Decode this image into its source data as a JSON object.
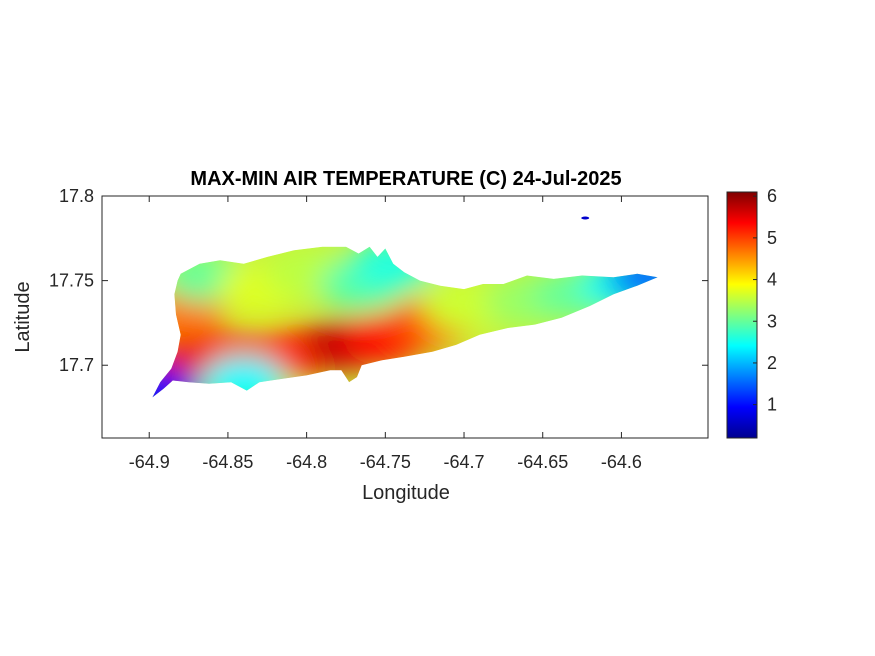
{
  "chart_data": {
    "type": "heatmap",
    "title": "MAX-MIN AIR TEMPERATURE (C) 24-Jul-2025",
    "xlabel": "Longitude",
    "ylabel": "Latitude",
    "xlim": [
      -64.93,
      -64.545
    ],
    "ylim": [
      17.657,
      17.8
    ],
    "x_ticks": [
      -64.9,
      -64.85,
      -64.8,
      -64.75,
      -64.7,
      -64.65,
      -64.6
    ],
    "x_tick_labels": [
      "-64.9",
      "-64.85",
      "-64.8",
      "-64.75",
      "-64.7",
      "-64.65",
      "-64.6"
    ],
    "y_ticks": [
      17.7,
      17.75,
      17.8
    ],
    "y_tick_labels": [
      "17.7",
      "17.75",
      "17.8"
    ],
    "colorbar": {
      "colormap": "jet",
      "range": [
        0.2,
        6.1
      ],
      "ticks": [
        1,
        2,
        3,
        4,
        5,
        6
      ],
      "tick_labels": [
        "1",
        "2",
        "3",
        "4",
        "5",
        "6"
      ]
    },
    "island_outline": [
      [
        -64.88,
        17.754
      ],
      [
        -64.868,
        17.76
      ],
      [
        -64.855,
        17.762
      ],
      [
        -64.84,
        17.76
      ],
      [
        -64.825,
        17.764
      ],
      [
        -64.808,
        17.768
      ],
      [
        -64.79,
        17.77
      ],
      [
        -64.775,
        17.77
      ],
      [
        -64.767,
        17.766
      ],
      [
        -64.76,
        17.77
      ],
      [
        -64.755,
        17.764
      ],
      [
        -64.75,
        17.769
      ],
      [
        -64.745,
        17.76
      ],
      [
        -64.738,
        17.755
      ],
      [
        -64.728,
        17.75
      ],
      [
        -64.715,
        17.747
      ],
      [
        -64.7,
        17.745
      ],
      [
        -64.688,
        17.748
      ],
      [
        -64.675,
        17.748
      ],
      [
        -64.66,
        17.753
      ],
      [
        -64.643,
        17.751
      ],
      [
        -64.625,
        17.753
      ],
      [
        -64.605,
        17.752
      ],
      [
        -64.59,
        17.754
      ],
      [
        -64.577,
        17.752
      ],
      [
        -64.59,
        17.747
      ],
      [
        -64.605,
        17.742
      ],
      [
        -64.62,
        17.735
      ],
      [
        -64.638,
        17.728
      ],
      [
        -64.655,
        17.724
      ],
      [
        -64.672,
        17.722
      ],
      [
        -64.69,
        17.718
      ],
      [
        -64.705,
        17.712
      ],
      [
        -64.72,
        17.708
      ],
      [
        -64.738,
        17.705
      ],
      [
        -64.752,
        17.703
      ],
      [
        -64.765,
        17.7
      ],
      [
        -64.768,
        17.693
      ],
      [
        -64.773,
        17.69
      ],
      [
        -64.778,
        17.697
      ],
      [
        -64.785,
        17.697
      ],
      [
        -64.8,
        17.694
      ],
      [
        -64.815,
        17.692
      ],
      [
        -64.83,
        17.69
      ],
      [
        -64.838,
        17.685
      ],
      [
        -64.848,
        17.69
      ],
      [
        -64.862,
        17.689
      ],
      [
        -64.875,
        17.69
      ],
      [
        -64.885,
        17.691
      ],
      [
        -64.891,
        17.686
      ],
      [
        -64.898,
        17.681
      ],
      [
        -64.893,
        17.69
      ],
      [
        -64.886,
        17.698
      ],
      [
        -64.882,
        17.708
      ],
      [
        -64.88,
        17.718
      ],
      [
        -64.883,
        17.73
      ],
      [
        -64.884,
        17.742
      ],
      [
        -64.882,
        17.75
      ]
    ],
    "temperature_field": [
      {
        "lon": -64.872,
        "lat": 17.705,
        "value": 5.5
      },
      {
        "lon": -64.84,
        "lat": 17.705,
        "value": 5.3
      },
      {
        "lon": -64.805,
        "lat": 17.708,
        "value": 5.1
      },
      {
        "lon": -64.775,
        "lat": 17.712,
        "value": 5.7
      },
      {
        "lon": -64.75,
        "lat": 17.715,
        "value": 5.3
      },
      {
        "lon": -64.72,
        "lat": 17.725,
        "value": 4.9
      },
      {
        "lon": -64.878,
        "lat": 17.73,
        "value": 4.7
      },
      {
        "lon": -64.865,
        "lat": 17.752,
        "value": 3.0
      },
      {
        "lon": -64.83,
        "lat": 17.745,
        "value": 3.7
      },
      {
        "lon": -64.8,
        "lat": 17.755,
        "value": 3.5
      },
      {
        "lon": -64.765,
        "lat": 17.748,
        "value": 2.9
      },
      {
        "lon": -64.745,
        "lat": 17.76,
        "value": 2.6
      },
      {
        "lon": -64.7,
        "lat": 17.735,
        "value": 3.6
      },
      {
        "lon": -64.66,
        "lat": 17.738,
        "value": 3.3
      },
      {
        "lon": -64.63,
        "lat": 17.742,
        "value": 3.0
      },
      {
        "lon": -64.6,
        "lat": 17.748,
        "value": 2.5
      },
      {
        "lon": -64.582,
        "lat": 17.752,
        "value": 1.6
      },
      {
        "lon": -64.895,
        "lat": 17.683,
        "value": 1.0
      },
      {
        "lon": -64.84,
        "lat": 17.69,
        "value": 2.4
      },
      {
        "lon": -64.623,
        "lat": 17.787,
        "value": 0.6
      }
    ]
  }
}
